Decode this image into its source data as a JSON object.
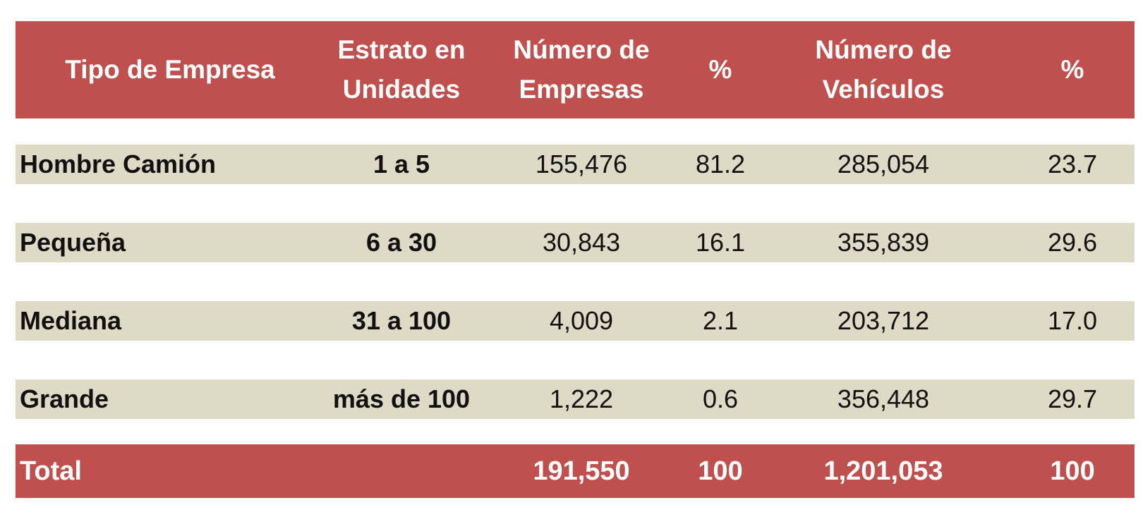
{
  "table": {
    "headers": [
      "Tipo de Empresa",
      "Estrato en\nUnidades",
      "Número de\nEmpresas",
      "%",
      "Número de\nVehículos",
      "%"
    ],
    "rows": [
      {
        "tipo": "Hombre Camión",
        "estrato": "1 a 5",
        "num_empresas": "155,476",
        "pct_empresas": "81.2",
        "num_vehiculos": "285,054",
        "pct_vehiculos": "23.7"
      },
      {
        "tipo": "Pequeña",
        "estrato": "6 a 30",
        "num_empresas": "30,843",
        "pct_empresas": "16.1",
        "num_vehiculos": "355,839",
        "pct_vehiculos": "29.6"
      },
      {
        "tipo": "Mediana",
        "estrato": "31 a 100",
        "num_empresas": "4,009",
        "pct_empresas": "2.1",
        "num_vehiculos": "203,712",
        "pct_vehiculos": "17.0"
      },
      {
        "tipo": "Grande",
        "estrato": "más de 100",
        "num_empresas": "1,222",
        "pct_empresas": "0.6",
        "num_vehiculos": "356,448",
        "pct_vehiculos": "29.7"
      }
    ],
    "total": {
      "label": "Total",
      "estrato": "",
      "num_empresas": "191,550",
      "pct_empresas": "100",
      "num_vehiculos": "1,201,053",
      "pct_vehiculos": "100"
    }
  },
  "colors": {
    "header_bg": "#c0504d",
    "row_bg": "#dedac5",
    "header_text": "#ffffff"
  }
}
